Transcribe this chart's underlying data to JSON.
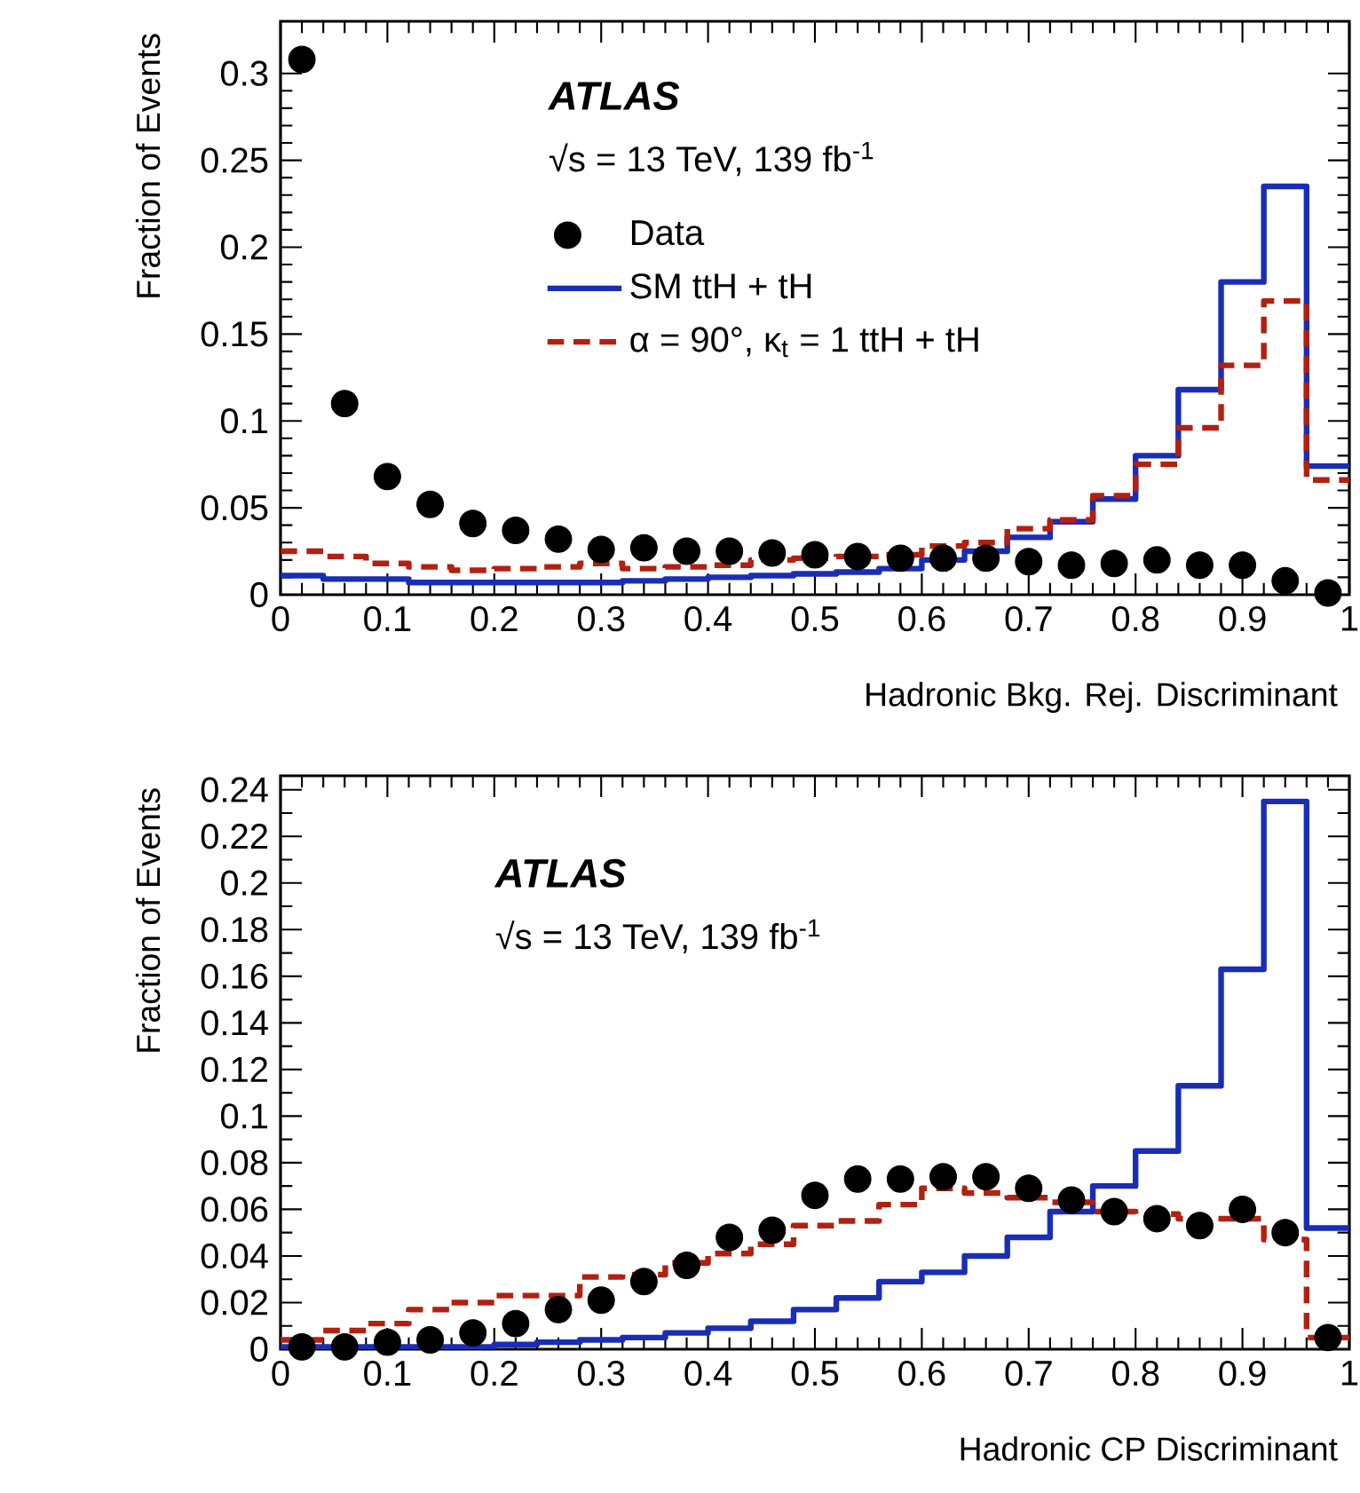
{
  "chart_data": [
    {
      "type": "histogram",
      "xlabel": "Hadronic Bkg. Rej. Discriminant",
      "ylabel": "Fraction of Events",
      "annotations": [
        "ATLAS",
        "√s = 13 TeV, 139 fb$^{-1}$"
      ],
      "bins": [
        0,
        0.04,
        0.08,
        0.12,
        0.16,
        0.2,
        0.24,
        0.28,
        0.32,
        0.36,
        0.4,
        0.44,
        0.48,
        0.52,
        0.56,
        0.6,
        0.64,
        0.68,
        0.72,
        0.76,
        0.8,
        0.84,
        0.88,
        0.92,
        0.96,
        1
      ],
      "xlim": [
        0,
        1
      ],
      "ylim": [
        0,
        0.33
      ],
      "xticks": [
        0,
        0.1,
        0.2,
        0.3,
        0.4,
        0.5,
        0.6,
        0.7,
        0.8,
        0.9,
        1
      ],
      "yticks": [
        0,
        0.05,
        0.1,
        0.15,
        0.2,
        0.25,
        0.3
      ],
      "legend": "top",
      "series": [
        {
          "name": "Data",
          "type": "scatter",
          "marker": "circle",
          "color": "#000000",
          "x": [
            0.02,
            0.06,
            0.1,
            0.14,
            0.18,
            0.22,
            0.26,
            0.3,
            0.34,
            0.38,
            0.42,
            0.46,
            0.5,
            0.54,
            0.58,
            0.62,
            0.66,
            0.7,
            0.74,
            0.78,
            0.82,
            0.86,
            0.9,
            0.94,
            0.98
          ],
          "values": [
            0.308,
            0.11,
            0.068,
            0.052,
            0.041,
            0.037,
            0.032,
            0.026,
            0.027,
            0.025,
            0.025,
            0.024,
            0.023,
            0.022,
            0.021,
            0.021,
            0.021,
            0.019,
            0.017,
            0.018,
            0.02,
            0.017,
            0.017,
            0.008,
            0.001
          ]
        },
        {
          "name": "SM ttH + tH",
          "color": "#1a2db5",
          "line_style": "solid",
          "values": [
            0.011,
            0.009,
            0.009,
            0.007,
            0.007,
            0.007,
            0.007,
            0.007,
            0.008,
            0.009,
            0.01,
            0.011,
            0.012,
            0.013,
            0.015,
            0.02,
            0.025,
            0.033,
            0.042,
            0.055,
            0.08,
            0.118,
            0.18,
            0.235,
            0.074
          ]
        },
        {
          "name": "α = 90°, κ$_{t}$ = 1 ttH + tH",
          "color": "#b22010",
          "line_style": "dashed",
          "values": [
            0.025,
            0.022,
            0.018,
            0.016,
            0.014,
            0.015,
            0.016,
            0.018,
            0.015,
            0.016,
            0.017,
            0.02,
            0.021,
            0.022,
            0.023,
            0.028,
            0.03,
            0.038,
            0.043,
            0.057,
            0.075,
            0.096,
            0.132,
            0.169,
            0.066
          ]
        }
      ]
    },
    {
      "type": "histogram",
      "xlabel": "Hadronic CP Discriminant",
      "ylabel": "Fraction of Events",
      "annotations": [
        "ATLAS",
        "√s = 13 TeV, 139 fb$^{-1}$"
      ],
      "bins": [
        0,
        0.04,
        0.08,
        0.12,
        0.16,
        0.2,
        0.24,
        0.28,
        0.32,
        0.36,
        0.4,
        0.44,
        0.48,
        0.52,
        0.56,
        0.6,
        0.64,
        0.68,
        0.72,
        0.76,
        0.8,
        0.84,
        0.88,
        0.92,
        0.96,
        1
      ],
      "xlim": [
        0,
        1
      ],
      "ylim": [
        0,
        0.246
      ],
      "xticks": [
        0,
        0.1,
        0.2,
        0.3,
        0.4,
        0.5,
        0.6,
        0.7,
        0.8,
        0.9,
        1
      ],
      "yticks": [
        0,
        0.02,
        0.04,
        0.06,
        0.08,
        0.1,
        0.12,
        0.14,
        0.16,
        0.18,
        0.2,
        0.22,
        0.24
      ],
      "series": [
        {
          "type": "scatter",
          "marker": "circle",
          "color": "#000000",
          "x": [
            0.02,
            0.06,
            0.1,
            0.14,
            0.18,
            0.22,
            0.26,
            0.3,
            0.34,
            0.38,
            0.42,
            0.46,
            0.5,
            0.54,
            0.58,
            0.62,
            0.66,
            0.7,
            0.74,
            0.78,
            0.82,
            0.86,
            0.9,
            0.94,
            0.98
          ],
          "values": [
            0.001,
            0.001,
            0.003,
            0.004,
            0.007,
            0.011,
            0.017,
            0.021,
            0.029,
            0.036,
            0.048,
            0.051,
            0.066,
            0.073,
            0.073,
            0.074,
            0.074,
            0.069,
            0.064,
            0.059,
            0.056,
            0.053,
            0.06,
            0.05,
            0.005
          ]
        },
        {
          "color": "#1a2db5",
          "line_style": "solid",
          "values": [
            0.001,
            0.001,
            0.001,
            0.001,
            0.001,
            0.002,
            0.003,
            0.004,
            0.005,
            0.007,
            0.009,
            0.012,
            0.017,
            0.022,
            0.029,
            0.033,
            0.04,
            0.048,
            0.059,
            0.07,
            0.085,
            0.113,
            0.163,
            0.235,
            0.052
          ]
        },
        {
          "color": "#b22010",
          "line_style": "dashed",
          "values": [
            0.004,
            0.008,
            0.011,
            0.017,
            0.02,
            0.023,
            0.023,
            0.031,
            0.032,
            0.037,
            0.041,
            0.045,
            0.053,
            0.055,
            0.062,
            0.069,
            0.067,
            0.065,
            0.063,
            0.059,
            0.058,
            0.056,
            0.056,
            0.047,
            0.005
          ]
        }
      ]
    }
  ]
}
